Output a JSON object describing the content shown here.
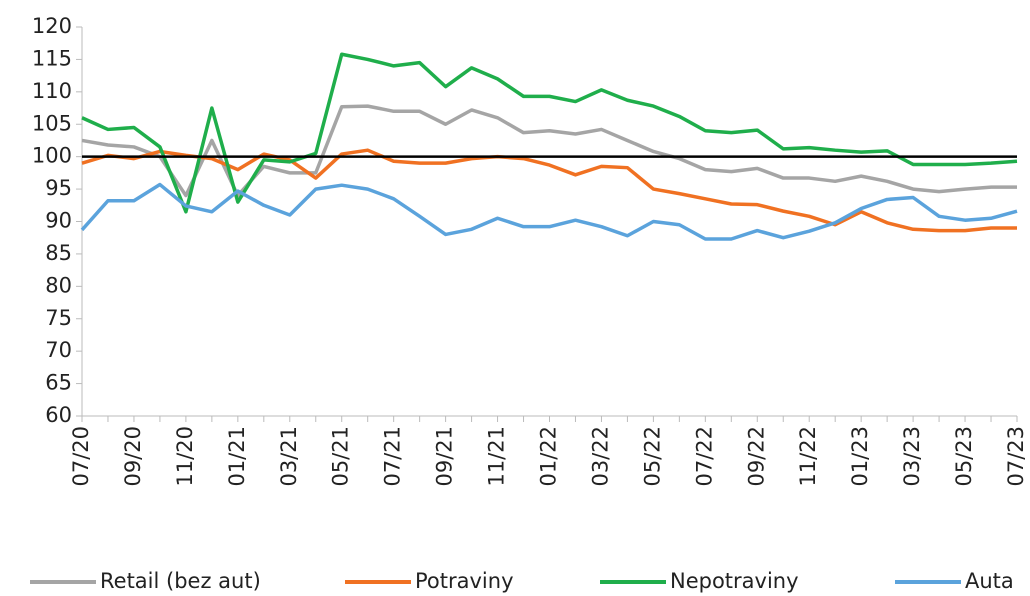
{
  "chart_data": {
    "type": "line",
    "categories": [
      "07/20",
      null,
      "09/20",
      null,
      "11/20",
      null,
      "01/21",
      null,
      "03/21",
      null,
      "05/21",
      null,
      "07/21",
      null,
      "09/21",
      null,
      "11/21",
      null,
      "01/22",
      null,
      "03/22",
      null,
      "05/22",
      null,
      "07/22",
      null,
      "09/22",
      null,
      "11/22",
      null,
      "01/23",
      null,
      "03/23",
      null,
      "05/23",
      null,
      "07/23"
    ],
    "series": [
      {
        "name": "Retail (bez aut)",
        "color": "#a5a5a5",
        "values": [
          102.5,
          101.8,
          101.5,
          100,
          94,
          102.5,
          94,
          98.5,
          97.5,
          97.5,
          107.7,
          107.8,
          107,
          107,
          105,
          107.2,
          106,
          103.7,
          104,
          103.5,
          104.2,
          102.5,
          100.8,
          99.7,
          98,
          97.7,
          98.2,
          96.7,
          96.7,
          96.2,
          97,
          96.2,
          95,
          94.6,
          95,
          95.3,
          95.3
        ]
      },
      {
        "name": "Potraviny",
        "color": "#f07122",
        "values": [
          99,
          100.2,
          99.7,
          100.8,
          100.2,
          99.7,
          98,
          100.4,
          99.5,
          96.7,
          100.4,
          101,
          99.3,
          99,
          99,
          99.7,
          100,
          99.7,
          98.7,
          97.2,
          98.5,
          98.3,
          95,
          94.3,
          93.5,
          92.7,
          92.6,
          91.6,
          90.8,
          89.5,
          91.5,
          89.8,
          88.8,
          88.6,
          88.6,
          89,
          89
        ]
      },
      {
        "name": "Nepotraviny",
        "color": "#1fae4b",
        "values": [
          106,
          104.2,
          104.5,
          101.5,
          91.5,
          107.5,
          93,
          99.5,
          99.2,
          100.5,
          115.8,
          115,
          114,
          114.5,
          110.8,
          113.7,
          112,
          109.3,
          109.3,
          108.5,
          110.3,
          108.7,
          107.8,
          106.2,
          104,
          103.7,
          104.1,
          101.2,
          101.4,
          101,
          100.7,
          100.9,
          98.8,
          98.8,
          98.8,
          99,
          99.3
        ]
      },
      {
        "name": "Auta",
        "color": "#5ba3dc",
        "values": [
          88.7,
          93.2,
          93.2,
          95.7,
          92.4,
          91.5,
          94.7,
          92.5,
          91,
          95,
          95.6,
          95,
          93.5,
          90.8,
          88,
          88.8,
          90.5,
          89.2,
          89.2,
          90.2,
          89.2,
          87.8,
          90,
          89.5,
          87.3,
          87.3,
          88.6,
          87.5,
          88.5,
          89.8,
          92,
          93.4,
          93.7,
          90.8,
          90.2,
          90.5,
          91.6
        ]
      }
    ],
    "reference_line": 100,
    "ylim": [
      60,
      120
    ],
    "yticks": [
      60,
      65,
      70,
      75,
      80,
      85,
      90,
      95,
      100,
      105,
      110,
      115,
      120
    ],
    "legend": "bottom"
  }
}
